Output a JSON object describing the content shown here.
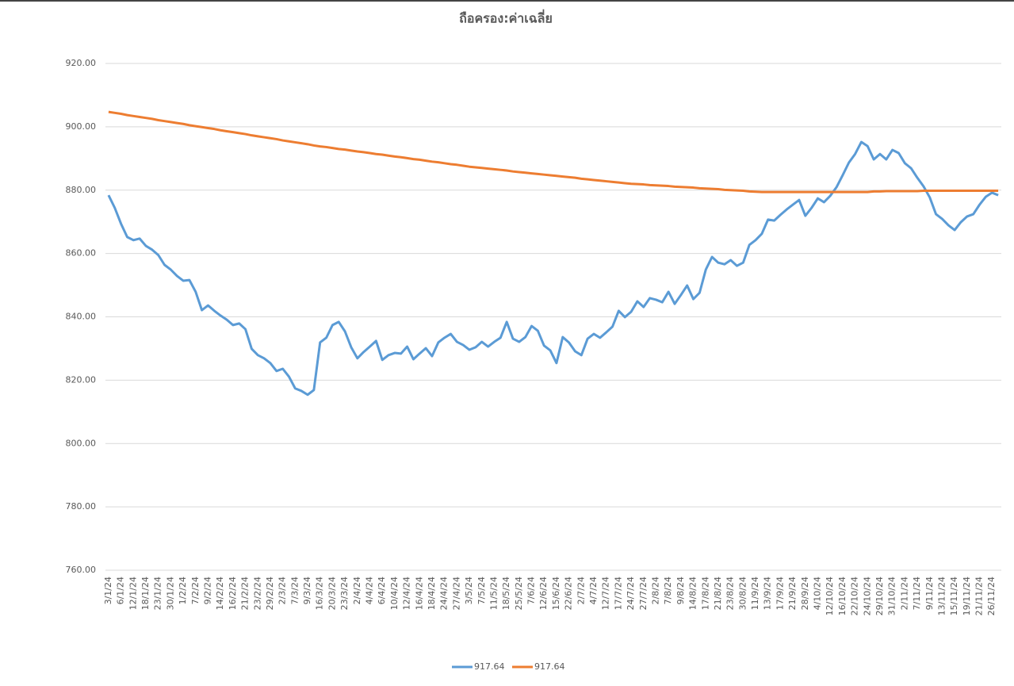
{
  "chart_data": {
    "type": "line",
    "title": "ถือครอง:ค่าเฉลี่ย",
    "categories": [
      "3/1/24",
      null,
      "6/1/24",
      null,
      "12/1/24",
      null,
      "18/1/24",
      null,
      "23/1/24",
      null,
      "30/1/24",
      null,
      "1/2/24",
      null,
      "7/2/24",
      null,
      "9/2/24",
      null,
      "14/2/24",
      null,
      "16/2/24",
      null,
      "21/2/24",
      null,
      "23/2/24",
      null,
      "29/2/24",
      null,
      "2/3/24",
      null,
      "7/3/24",
      null,
      "9/3/24",
      null,
      "16/3/24",
      null,
      "20/3/24",
      null,
      "23/3/24",
      null,
      "2/4/24",
      null,
      "4/4/24",
      null,
      "6/4/24",
      null,
      "10/4/24",
      null,
      "12/4/24",
      null,
      "16/4/24",
      null,
      "18/4/24",
      null,
      "24/4/24",
      null,
      "27/4/24",
      null,
      "3/5/24",
      null,
      "7/5/24",
      null,
      "11/5/24",
      null,
      "18/5/24",
      null,
      "25/5/24",
      null,
      "7/6/24",
      null,
      "12/6/24",
      null,
      "15/6/24",
      null,
      "22/6/24",
      null,
      "2/7/24",
      null,
      "4/7/24",
      null,
      "12/7/24",
      null,
      "17/7/24",
      null,
      "24/7/24",
      null,
      "27/7/24",
      null,
      "2/8/24",
      null,
      "7/8/24",
      null,
      "9/8/24",
      null,
      "14/8/24",
      null,
      "17/8/24",
      null,
      "21/8/24",
      null,
      "23/8/24",
      null,
      "30/8/24",
      null,
      "11/9/24",
      null,
      "13/9/24",
      null,
      "17/9/24",
      null,
      "21/9/24",
      null,
      "28/9/24",
      null,
      "4/10/24",
      null,
      "12/10/24",
      null,
      "16/10/24",
      null,
      "22/10/24",
      null,
      "24/10/24",
      null,
      "29/10/24",
      null,
      "31/10/24",
      null,
      "2/11/24",
      null,
      "7/11/24",
      null,
      "9/11/24",
      null,
      "13/11/24",
      null,
      "15/11/24",
      null,
      "19/11/24",
      null,
      "21/11/24",
      null,
      "26/11/24",
      null
    ],
    "series": [
      {
        "name": "917.64",
        "color": "#5b9bd5",
        "values": [
          878.4,
          874.4,
          869.4,
          865.2,
          864.2,
          864.7,
          862.4,
          861.2,
          859.5,
          856.4,
          854.9,
          852.9,
          851.4,
          851.6,
          847.9,
          842.1,
          843.6,
          841.9,
          840.4,
          839.1,
          837.4,
          837.9,
          836.1,
          829.9,
          827.9,
          826.9,
          825.4,
          822.9,
          823.6,
          821.1,
          817.4,
          816.6,
          815.4,
          816.9,
          831.9,
          833.4,
          837.4,
          838.4,
          835.4,
          830.4,
          826.9,
          828.9,
          830.6,
          832.4,
          826.4,
          827.9,
          828.6,
          828.4,
          830.6,
          826.6,
          828.4,
          830.1,
          827.6,
          831.9,
          833.4,
          834.6,
          832.1,
          831.1,
          829.6,
          830.4,
          832.1,
          830.6,
          832.1,
          833.4,
          838.4,
          833.1,
          832.1,
          833.6,
          837.1,
          835.6,
          830.9,
          829.4,
          825.4,
          833.6,
          831.9,
          829.1,
          827.9,
          833.1,
          834.6,
          833.4,
          835.1,
          836.9,
          841.9,
          839.9,
          841.6,
          844.9,
          843.1,
          845.9,
          845.4,
          844.6,
          847.9,
          844.1,
          846.9,
          849.9,
          845.6,
          847.6,
          854.9,
          858.9,
          857.1,
          856.6,
          857.9,
          856.1,
          857.1,
          862.7,
          864.2,
          866.2,
          870.7,
          870.4,
          872.2,
          873.9,
          875.4,
          876.9,
          871.9,
          874.4,
          877.4,
          876.2,
          878.2,
          880.9,
          884.7,
          888.7,
          891.4,
          895.2,
          893.9,
          889.7,
          891.4,
          889.7,
          892.7,
          891.7,
          888.5,
          886.9,
          883.9,
          881.2,
          877.7,
          872.4,
          870.9,
          868.9,
          867.4,
          869.9,
          871.7,
          872.4,
          875.4,
          877.9,
          879.2,
          878.4
        ]
      },
      {
        "name": "917.64",
        "color": "#ed7d31",
        "values": [
          904.7,
          904.4,
          904.1,
          903.7,
          903.4,
          903.1,
          902.8,
          902.5,
          902.1,
          901.8,
          901.5,
          901.2,
          900.9,
          900.5,
          900.2,
          899.9,
          899.6,
          899.3,
          898.9,
          898.6,
          898.3,
          898.0,
          897.7,
          897.3,
          897.0,
          896.7,
          896.4,
          896.1,
          895.7,
          895.4,
          895.1,
          894.8,
          894.5,
          894.1,
          893.8,
          893.6,
          893.3,
          893.0,
          892.8,
          892.5,
          892.2,
          892.0,
          891.7,
          891.4,
          891.2,
          890.9,
          890.6,
          890.4,
          890.1,
          889.8,
          889.6,
          889.3,
          889.0,
          888.8,
          888.5,
          888.2,
          888.0,
          887.7,
          887.4,
          887.2,
          887.0,
          886.8,
          886.6,
          886.4,
          886.2,
          885.9,
          885.7,
          885.5,
          885.3,
          885.1,
          884.9,
          884.7,
          884.5,
          884.3,
          884.1,
          883.9,
          883.6,
          883.4,
          883.2,
          883.0,
          882.8,
          882.6,
          882.4,
          882.2,
          882.0,
          881.9,
          881.8,
          881.6,
          881.5,
          881.4,
          881.3,
          881.1,
          881.0,
          880.9,
          880.8,
          880.6,
          880.5,
          880.4,
          880.3,
          880.1,
          880.0,
          879.9,
          879.8,
          879.6,
          879.5,
          879.4,
          879.4,
          879.4,
          879.4,
          879.4,
          879.4,
          879.4,
          879.4,
          879.4,
          879.4,
          879.4,
          879.4,
          879.4,
          879.4,
          879.4,
          879.4,
          879.4,
          879.4,
          879.6,
          879.6,
          879.7,
          879.7,
          879.7,
          879.7,
          879.7,
          879.7,
          879.8,
          879.8,
          879.8,
          879.8,
          879.8,
          879.8,
          879.8,
          879.8,
          879.8,
          879.8,
          879.8,
          879.8,
          879.8
        ]
      }
    ],
    "ylim": [
      760,
      920
    ],
    "yticks": [
      {
        "value": 760,
        "label": "760.00"
      },
      {
        "value": 780,
        "label": "780.00"
      },
      {
        "value": 800,
        "label": "800.00"
      },
      {
        "value": 820,
        "label": "820.00"
      },
      {
        "value": 840,
        "label": "840.00"
      },
      {
        "value": 860,
        "label": "860.00"
      },
      {
        "value": 880,
        "label": "880.00"
      },
      {
        "value": 900,
        "label": "900.00"
      },
      {
        "value": 920,
        "label": "920.00"
      }
    ],
    "grid": true,
    "legend": "bottom"
  }
}
